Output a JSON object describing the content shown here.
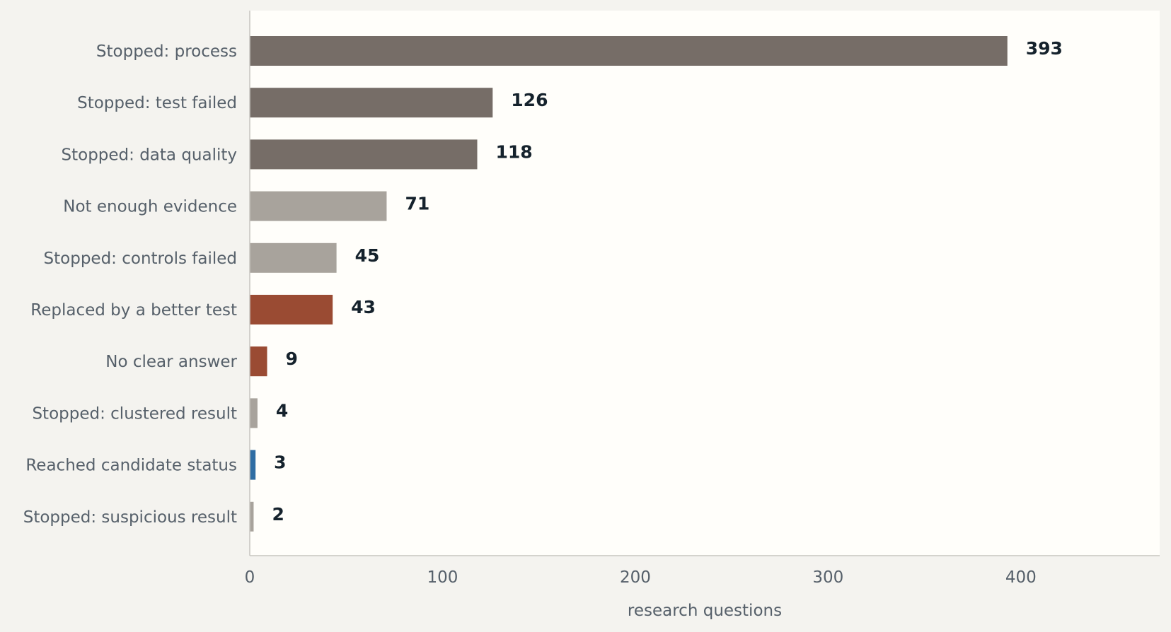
{
  "chart_data": {
    "type": "bar",
    "orientation": "horizontal",
    "categories": [
      "Stopped: process",
      "Stopped: test failed",
      "Stopped: data quality",
      "Not enough evidence",
      "Stopped: controls failed",
      "Replaced by a better test",
      "No clear answer",
      "Stopped: clustered result",
      "Reached candidate status",
      "Stopped: suspicious result"
    ],
    "values": [
      393,
      126,
      118,
      71,
      45,
      43,
      9,
      4,
      3,
      2
    ],
    "value_labels": [
      "393",
      "126",
      "118",
      "71",
      "45",
      "43",
      "9",
      "4",
      "3",
      "2"
    ],
    "colors": [
      "#766d67",
      "#766d67",
      "#766d67",
      "#a8a39c",
      "#a8a39c",
      "#9a4b33",
      "#9a4b33",
      "#a8a39c",
      "#2f6da3",
      "#a8a39c"
    ],
    "xlabel": "research questions",
    "ylabel": "",
    "xlim": [
      0,
      472
    ],
    "xticks": [
      0,
      100,
      200,
      300,
      400
    ],
    "xtick_labels": [
      "0",
      "100",
      "200",
      "300",
      "400"
    ],
    "grid": false,
    "legend": "none"
  },
  "colors": {
    "background": "#f4f3ef",
    "plot_background": "#fffefa"
  }
}
